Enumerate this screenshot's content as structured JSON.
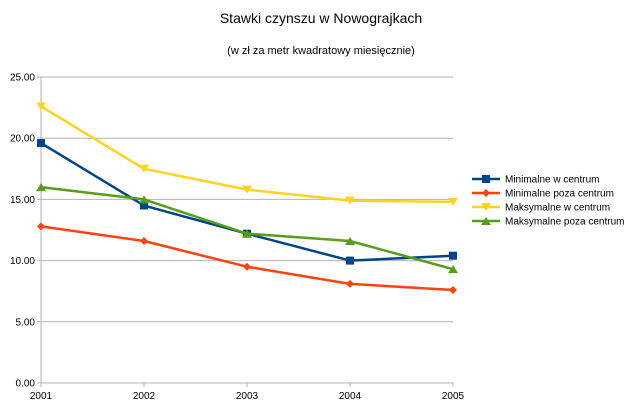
{
  "chart_data": {
    "type": "line",
    "title": "Stawki czynszu w Nowograjkach",
    "subtitle": "(w zł za metr kwadratowy miesięcznie)",
    "xlabel": "",
    "ylabel": "",
    "categories": [
      "2001",
      "2002",
      "2003",
      "2004",
      "2005"
    ],
    "ylim": [
      0,
      25
    ],
    "yticks": [
      "0.00",
      "5.00",
      "10.00",
      "15.00",
      "20.00",
      "25.00"
    ],
    "grid": true,
    "legend_position": "right",
    "series": [
      {
        "name": "Minimalne w centrum",
        "color": "#004586",
        "marker": "square",
        "values": [
          19.6,
          14.5,
          12.2,
          10.0,
          10.4
        ]
      },
      {
        "name": "Minimalne poza centrum",
        "color": "#ff420e",
        "marker": "diamond",
        "values": [
          12.8,
          11.6,
          9.5,
          8.1,
          7.6
        ]
      },
      {
        "name": "Maksymalne w centrum",
        "color": "#ffd320",
        "marker": "triangle-down",
        "values": [
          22.6,
          17.5,
          15.8,
          14.9,
          14.8
        ]
      },
      {
        "name": "Maksymalne poza centrum",
        "color": "#579d1c",
        "marker": "triangle-up",
        "values": [
          16.0,
          15.0,
          12.2,
          11.6,
          9.3
        ]
      }
    ]
  }
}
